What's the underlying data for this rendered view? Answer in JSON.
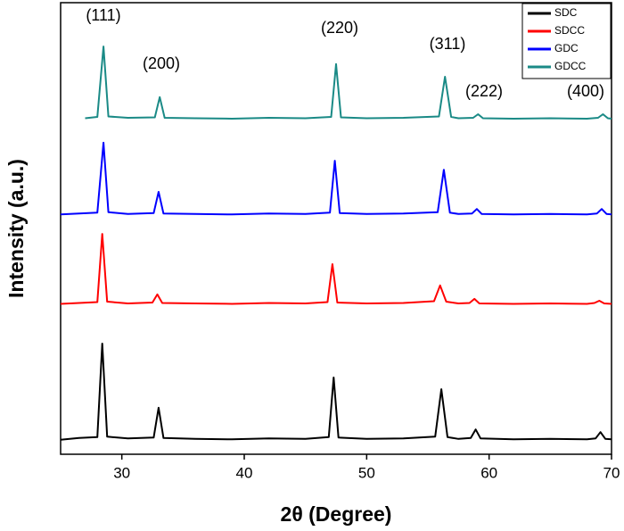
{
  "chart_data": {
    "type": "line",
    "x_label": "2θ (Degree)",
    "y_label": "Intensity (a.u.)",
    "xlim": [
      25,
      70
    ],
    "xticks": [
      30,
      40,
      50,
      60,
      70
    ],
    "ylim": [
      0,
      100
    ],
    "annotations": [
      "(111)",
      "(200)",
      "(220)",
      "(311)",
      "(222)",
      "(400)"
    ],
    "series": [
      {
        "name": "SDC",
        "color": "#000000",
        "x": [
          25,
          26.5,
          28,
          28.4,
          28.8,
          30.5,
          32.6,
          33.0,
          33.4,
          36,
          39,
          42,
          45,
          46.9,
          47.3,
          47.7,
          50,
          53,
          55.6,
          56.1,
          56.6,
          57.5,
          58.5,
          58.9,
          59.3,
          62,
          65,
          68,
          68.7,
          69.1,
          69.5,
          70
        ],
        "values": [
          3.2,
          3.6,
          3.8,
          24.5,
          3.9,
          3.5,
          3.7,
          10.3,
          3.6,
          3.4,
          3.3,
          3.5,
          3.4,
          3.8,
          17.0,
          3.7,
          3.4,
          3.5,
          3.9,
          14.4,
          3.8,
          3.4,
          3.6,
          5.5,
          3.5,
          3.3,
          3.4,
          3.3,
          3.5,
          4.9,
          3.4,
          3.3
        ]
      },
      {
        "name": "SDCC",
        "color": "#ff0000",
        "x": [
          25,
          26.5,
          28,
          28.4,
          28.8,
          30.5,
          32.5,
          32.9,
          33.3,
          36,
          39,
          42,
          45,
          46.8,
          47.2,
          47.6,
          50,
          53,
          55.5,
          56.0,
          56.5,
          57.5,
          58.4,
          58.8,
          59.2,
          62,
          65,
          68,
          68.6,
          69.0,
          69.4,
          70
        ],
        "values": [
          33.3,
          33.5,
          33.7,
          48.8,
          33.8,
          33.4,
          33.6,
          35.4,
          33.5,
          33.4,
          33.3,
          33.5,
          33.4,
          33.7,
          42.1,
          33.6,
          33.4,
          33.5,
          33.9,
          37.4,
          33.8,
          33.4,
          33.5,
          34.4,
          33.4,
          33.3,
          33.4,
          33.3,
          33.5,
          34.0,
          33.4,
          33.3
        ]
      },
      {
        "name": "GDC",
        "color": "#0000ff",
        "x": [
          25,
          26.5,
          28,
          28.5,
          28.9,
          30.5,
          32.6,
          33.0,
          33.4,
          36,
          39,
          42,
          45,
          47.0,
          47.4,
          47.8,
          50,
          53,
          55.8,
          56.3,
          56.8,
          57.5,
          58.6,
          59.0,
          59.4,
          62,
          65,
          68,
          68.8,
          69.2,
          69.6,
          70
        ],
        "values": [
          53.1,
          53.3,
          53.5,
          69.0,
          53.6,
          53.2,
          53.4,
          58.1,
          53.3,
          53.2,
          53.1,
          53.3,
          53.2,
          53.5,
          65.0,
          53.4,
          53.2,
          53.3,
          53.6,
          63.0,
          53.5,
          53.2,
          53.3,
          54.3,
          53.2,
          53.1,
          53.2,
          53.1,
          53.3,
          54.3,
          53.2,
          53.1
        ]
      },
      {
        "name": "GDCC",
        "color": "#1a8a86",
        "x": [
          27,
          28,
          28.5,
          28.9,
          30.5,
          32.7,
          33.1,
          33.5,
          36,
          39,
          42,
          45,
          47.1,
          47.5,
          47.9,
          50,
          53,
          55.9,
          56.4,
          56.9,
          57.5,
          58.7,
          59.1,
          59.5,
          62,
          65,
          68,
          68.9,
          69.3,
          69.7,
          70
        ],
        "values": [
          74.4,
          74.7,
          90.3,
          74.8,
          74.5,
          74.6,
          79.1,
          74.5,
          74.4,
          74.3,
          74.5,
          74.4,
          74.7,
          86.4,
          74.6,
          74.4,
          74.5,
          74.8,
          83.6,
          74.7,
          74.4,
          74.5,
          75.3,
          74.4,
          74.3,
          74.4,
          74.3,
          74.5,
          75.3,
          74.4,
          74.3
        ]
      }
    ]
  }
}
